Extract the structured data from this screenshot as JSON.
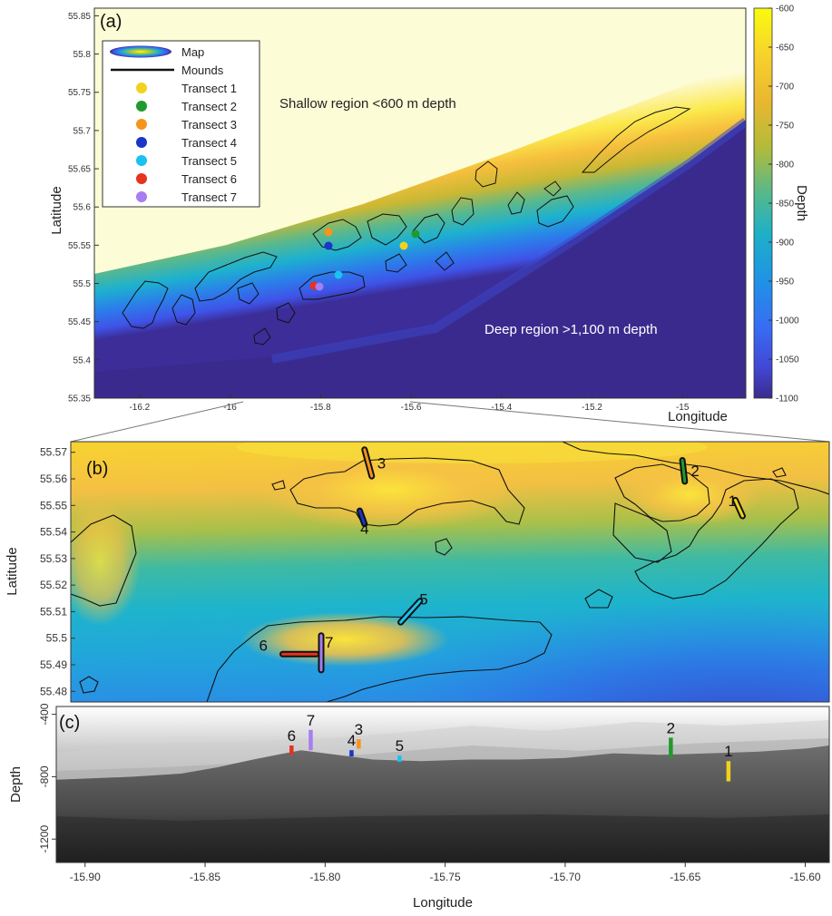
{
  "chart_data": [
    {
      "panel": "(a)",
      "type": "heatmap",
      "xlabel": "Longitude",
      "ylabel": "Latitude",
      "xlim": [
        -16.3,
        -14.86
      ],
      "ylim": [
        55.35,
        55.86
      ],
      "x_ticks": [
        -16.2,
        -16,
        -15.8,
        -15.6,
        -15.4,
        -15.2,
        -15
      ],
      "y_ticks": [
        55.35,
        55.4,
        55.45,
        55.5,
        55.55,
        55.6,
        55.65,
        55.7,
        55.75,
        55.8,
        55.85
      ],
      "colorbar": {
        "label": "Depth",
        "range": [
          -1100,
          -600
        ],
        "ticks": [
          -600,
          -650,
          -700,
          -750,
          -800,
          -850,
          -900,
          -950,
          -1000,
          -1050,
          -1100
        ],
        "colors": [
          "#f9fb0e",
          "#fbbf3a",
          "#e4b32d",
          "#a6bd40",
          "#35b7a3",
          "#1aa7d6",
          "#2786e8",
          "#3a5ff0",
          "#3e3fd6",
          "#3b2a8e"
        ]
      },
      "legend": {
        "placement": "top-left",
        "entries": [
          "Map",
          "Mounds",
          "Transect 1",
          "Transect 2",
          "Transect 3",
          "Transect 4",
          "Transect 5",
          "Transect 6",
          "Transect 7"
        ]
      },
      "annotations": [
        "Shallow region <600 m depth",
        "Deep region >1,100 m depth"
      ],
      "transects": [
        {
          "name": "Transect 1",
          "lon": -15.632,
          "lat": 55.549,
          "color": "#f2d21c"
        },
        {
          "name": "Transect 2",
          "lon": -15.656,
          "lat": 55.562,
          "color": "#1f9a2e"
        },
        {
          "name": "Transect 3",
          "lon": -15.785,
          "lat": 55.567,
          "color": "#f7941d"
        },
        {
          "name": "Transect 4",
          "lon": -15.789,
          "lat": 55.548,
          "color": "#1936c8"
        },
        {
          "name": "Transect 5",
          "lon": -15.768,
          "lat": 55.512,
          "color": "#19c2f0"
        },
        {
          "name": "Transect 6",
          "lon": -15.815,
          "lat": 55.494,
          "color": "#e8321e"
        },
        {
          "name": "Transect 7",
          "lon": -15.806,
          "lat": 55.495,
          "color": "#a77ef0"
        }
      ]
    },
    {
      "panel": "(b)",
      "type": "heatmap",
      "xlabel": "",
      "ylabel": "Latitude",
      "xlim": [
        -15.91,
        -15.595
      ],
      "ylim": [
        55.476,
        55.574
      ],
      "y_ticks": [
        55.48,
        55.49,
        55.5,
        55.51,
        55.52,
        55.53,
        55.54,
        55.55,
        55.56,
        55.57
      ],
      "transects": [
        {
          "label": "1",
          "lon": [
            -15.634,
            -15.631
          ],
          "lat": [
            55.552,
            55.546
          ],
          "color": "#f2d21c"
        },
        {
          "label": "2",
          "lon": [
            -15.656,
            -15.655
          ],
          "lat": [
            55.567,
            55.559
          ],
          "color": "#1f9a2e"
        },
        {
          "label": "3",
          "lon": [
            -15.788,
            -15.785
          ],
          "lat": [
            55.571,
            55.561
          ],
          "color": "#f7941d"
        },
        {
          "label": "4",
          "lon": [
            -15.79,
            -15.788
          ],
          "lat": [
            55.548,
            55.543
          ],
          "color": "#1936c8"
        },
        {
          "label": "5",
          "lon": [
            -15.773,
            -15.765
          ],
          "lat": [
            55.506,
            55.514
          ],
          "color": "#19c2f0"
        },
        {
          "label": "6",
          "lon": [
            -15.822,
            -15.808
          ],
          "lat": [
            55.494,
            55.494
          ],
          "color": "#e8321e"
        },
        {
          "label": "7",
          "lon": [
            -15.806,
            -15.806
          ],
          "lat": [
            55.501,
            55.488
          ],
          "color": "#a77ef0"
        }
      ]
    },
    {
      "panel": "(c)",
      "type": "area",
      "xlabel": "Longitude",
      "ylabel": "Depth",
      "xlim": [
        -15.912,
        -15.59
      ],
      "ylim": [
        -1350,
        -350
      ],
      "x_ticks": [
        -15.9,
        -15.85,
        -15.8,
        -15.75,
        -15.7,
        -15.65,
        -15.6
      ],
      "x_tick_labels": [
        "-15.90",
        "-15.85",
        "-15.80",
        "-15.75",
        "-15.70",
        "-15.65",
        "-15.60"
      ],
      "y_ticks": [
        -400,
        -800,
        -1200
      ],
      "x": [
        -15.912,
        -15.88,
        -15.86,
        -15.845,
        -15.83,
        -15.82,
        -15.81,
        -15.8,
        -15.79,
        -15.78,
        -15.76,
        -15.74,
        -15.72,
        -15.7,
        -15.68,
        -15.66,
        -15.64,
        -15.62,
        -15.6,
        -15.59
      ],
      "values": [
        -820,
        -800,
        -780,
        -740,
        -690,
        -660,
        -630,
        -650,
        -670,
        -690,
        -700,
        -690,
        -690,
        -680,
        -650,
        -660,
        -650,
        -640,
        -620,
        -600
      ],
      "transects": [
        {
          "label": "1",
          "lon": -15.632,
          "depth_top": -700,
          "depth_bottom": -830,
          "color": "#f2d21c"
        },
        {
          "label": "2",
          "lon": -15.656,
          "depth_top": -550,
          "depth_bottom": -680,
          "color": "#1f9a2e"
        },
        {
          "label": "3",
          "lon": -15.786,
          "depth_top": -560,
          "depth_bottom": -620,
          "color": "#f7941d"
        },
        {
          "label": "4",
          "lon": -15.789,
          "depth_top": -630,
          "depth_bottom": -670,
          "color": "#1936c8"
        },
        {
          "label": "5",
          "lon": -15.769,
          "depth_top": -665,
          "depth_bottom": -705,
          "color": "#19c2f0"
        },
        {
          "label": "6",
          "lon": -15.814,
          "depth_top": -600,
          "depth_bottom": -660,
          "color": "#e8321e"
        },
        {
          "label": "7",
          "lon": -15.806,
          "depth_top": -500,
          "depth_bottom": -630,
          "color": "#a77ef0"
        }
      ]
    }
  ]
}
